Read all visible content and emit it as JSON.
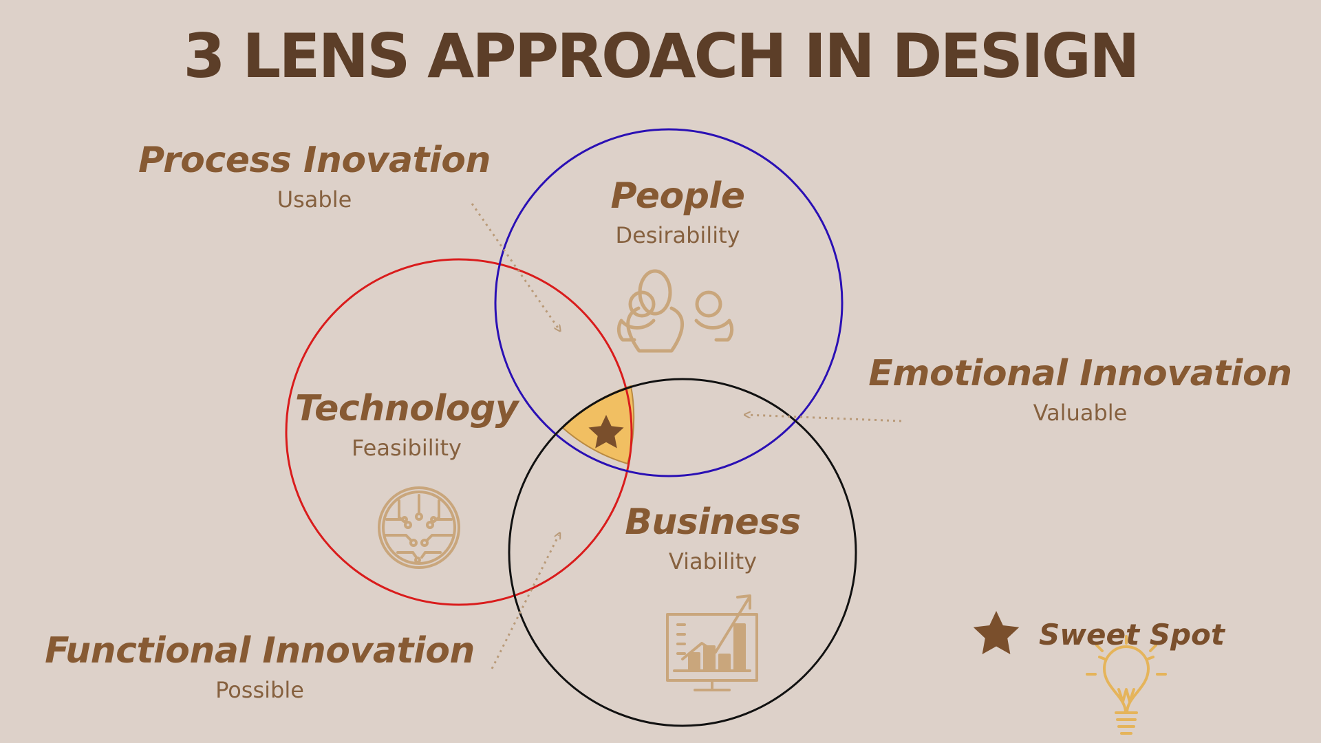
{
  "title": "3 LENS APPROACH IN DESIGN",
  "lenses": {
    "people": {
      "name": "People",
      "quality": "Desirability",
      "icon": "people-group-icon",
      "ring_color": "#2a10b4"
    },
    "technology": {
      "name": "Technology",
      "quality": "Feasibility",
      "icon": "circuit-chip-icon",
      "ring_color": "#d91c1c"
    },
    "business": {
      "name": "Business",
      "quality": "Viability",
      "icon": "growth-chart-monitor-icon",
      "ring_color": "#111111"
    }
  },
  "innovations": {
    "process": {
      "name": "Process Inovation",
      "quality": "Usable"
    },
    "emotional": {
      "name": "Emotional Innovation",
      "quality": "Valuable"
    },
    "functional": {
      "name": "Functional Innovation",
      "quality": "Possible"
    }
  },
  "legend": {
    "label": "Sweet Spot",
    "icon": "star-icon",
    "lightbulb_icon": "lightbulb-icon"
  },
  "colors": {
    "background": "#ddd1c9",
    "title": "#5c3e28",
    "label": "#875a33",
    "icon": "#c9a67c",
    "sweet_spot_fill": "#f1bf62",
    "star": "#7a4f2c",
    "arrow": "#b99a78"
  }
}
